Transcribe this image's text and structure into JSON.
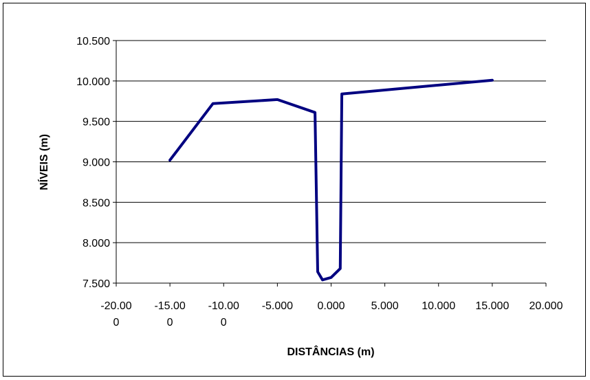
{
  "chart_data": {
    "type": "line",
    "title": "",
    "xlabel": "DISTÂNCIAS (m)",
    "ylabel": "NÍVEIS (m)",
    "xlim": [
      -20,
      20
    ],
    "ylim": [
      7.5,
      10.5
    ],
    "x_ticks": [
      -20,
      -15,
      -10,
      -5,
      0,
      5,
      10,
      15,
      20
    ],
    "x_tick_labels": [
      [
        "-20.00",
        "0"
      ],
      [
        "-15.00",
        "0"
      ],
      [
        "-10.00",
        "0"
      ],
      [
        "-5.000"
      ],
      [
        "0.000"
      ],
      [
        "5.000"
      ],
      [
        "10.000"
      ],
      [
        "15.000"
      ],
      [
        "20.000"
      ]
    ],
    "y_ticks": [
      7.5,
      8.0,
      8.5,
      9.0,
      9.5,
      10.0,
      10.5
    ],
    "y_tick_labels": [
      "7.500",
      "8.000",
      "8.500",
      "9.000",
      "9.500",
      "10.000",
      "10.500"
    ],
    "grid": {
      "horizontal": true,
      "vertical": false
    },
    "series": [
      {
        "color": "#000080",
        "points": [
          [
            -15.0,
            9.02
          ],
          [
            -11.0,
            9.72
          ],
          [
            -5.0,
            9.77
          ],
          [
            -1.5,
            9.61
          ],
          [
            -1.25,
            7.64
          ],
          [
            -0.8,
            7.54
          ],
          [
            0.0,
            7.57
          ],
          [
            0.85,
            7.68
          ],
          [
            1.0,
            9.84
          ],
          [
            15.0,
            10.01
          ]
        ]
      }
    ]
  }
}
